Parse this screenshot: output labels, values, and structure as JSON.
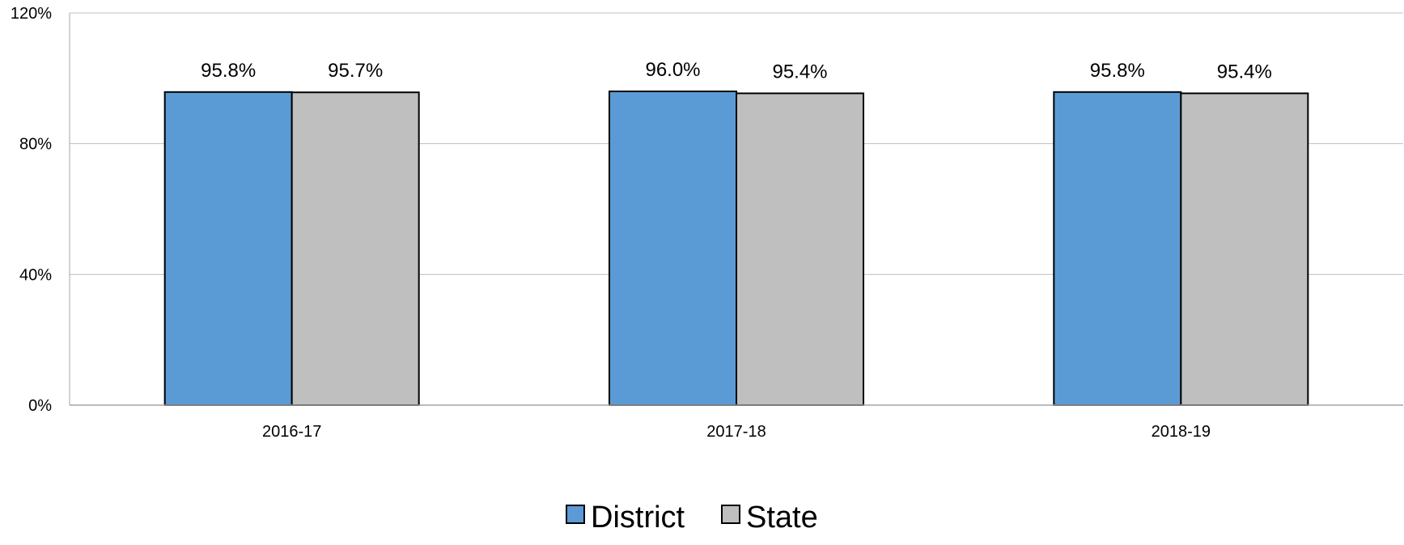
{
  "chart_data": {
    "type": "bar",
    "categories": [
      "2016-17",
      "2017-18",
      "2018-19"
    ],
    "series": [
      {
        "name": "District",
        "values": [
          95.8,
          96.0,
          95.8
        ],
        "labels": [
          "95.8%",
          "96.0%",
          "95.8%"
        ],
        "color": "#5B9BD5"
      },
      {
        "name": "State",
        "values": [
          95.7,
          95.4,
          95.4
        ],
        "labels": [
          "95.7%",
          "95.4%",
          "95.4%"
        ],
        "color": "#BFBFBF"
      }
    ],
    "ylim": [
      0,
      120
    ],
    "yticks": [
      0,
      40,
      80,
      120
    ],
    "ytick_labels": [
      "0%",
      "40%",
      "80%",
      "120%"
    ],
    "grid": true,
    "legend": "bottom-center",
    "colors": {
      "gridline": "#BFBFBF",
      "bar_outline": "#000000"
    }
  }
}
